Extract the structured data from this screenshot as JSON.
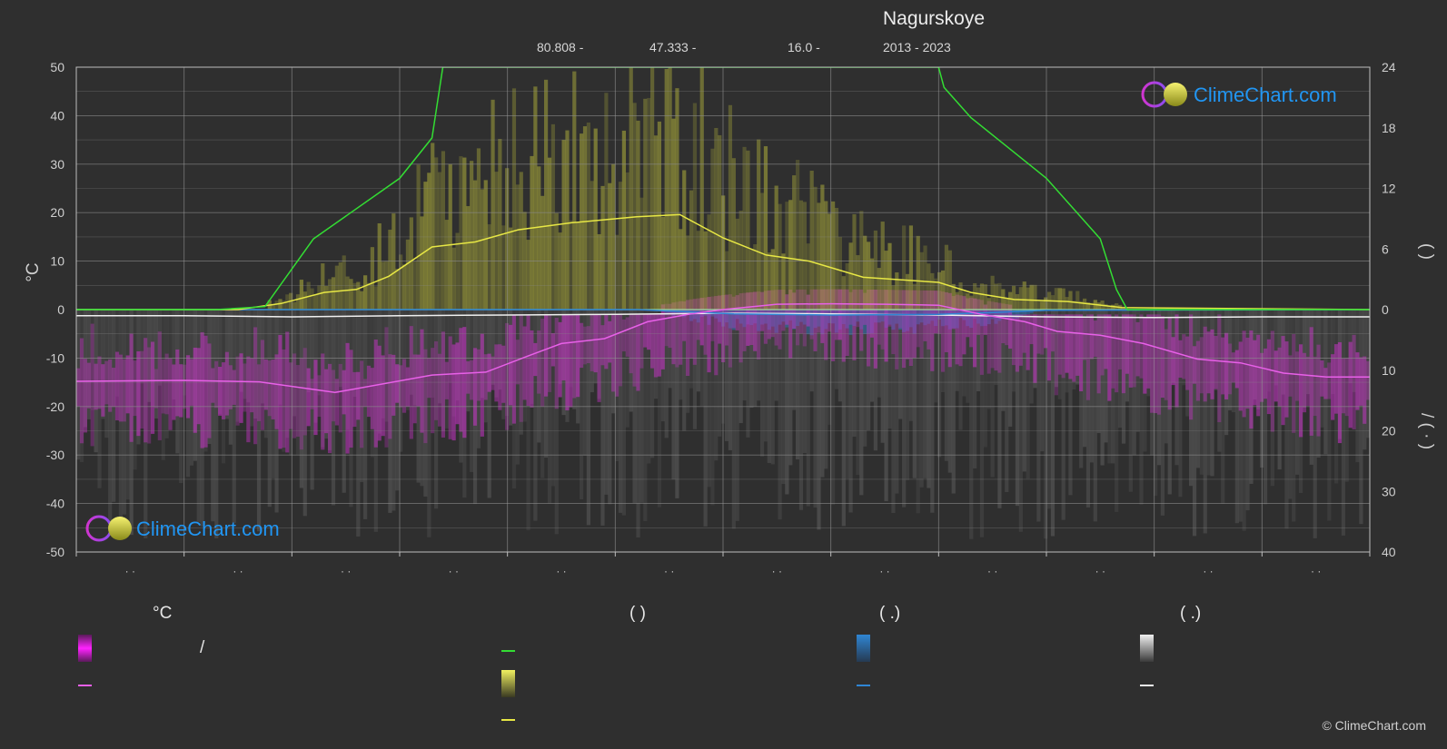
{
  "title": "Nagurskoye",
  "meta": {
    "latitude": "80.808 -",
    "longitude": "47.333 -",
    "elevation": "16.0 -",
    "years": "2013 - 2023"
  },
  "logo_text": "ClimeChart.com",
  "copyright": "© ClimeChart.com",
  "colors": {
    "background": "#2f2f2f",
    "daylight": "#33dd33",
    "sunshine": "#e7e745",
    "temperature": "#e860e8",
    "temperature_band": "#cc33cc",
    "rain": "#2f86d4",
    "snow": "#d8d8d8",
    "logo": "#2196f3"
  },
  "chart_data": {
    "type": "line",
    "x": [
      0,
      1,
      2,
      3,
      4,
      5,
      6,
      7,
      8,
      9,
      10,
      11,
      12
    ],
    "month_tick_labels": [
      "· ·",
      "· ·",
      "· ·",
      "· ·",
      "· ·",
      "· ·",
      "· ·",
      "· ·",
      "· ·",
      "· ·",
      "· ·",
      "· ·"
    ],
    "y_left": {
      "label": "°C",
      "range": [
        -50,
        50
      ],
      "ticks": [
        50,
        40,
        30,
        20,
        10,
        0,
        -10,
        -20,
        -30,
        -40,
        -50
      ]
    },
    "y_right_top": {
      "label": "(  )",
      "range": [
        0,
        24
      ],
      "ticks": [
        24,
        18,
        12,
        6,
        0
      ]
    },
    "y_right_bottom": {
      "label": "/  (  ·  )",
      "range": [
        0,
        40
      ],
      "ticks": [
        0,
        10,
        20,
        30,
        40
      ]
    },
    "grid": true,
    "series": [
      {
        "key": "daylight",
        "unit": "hours",
        "points": [
          [
            0,
            0
          ],
          [
            1.3,
            0
          ],
          [
            1.75,
            0.3
          ],
          [
            2.2,
            7
          ],
          [
            3.0,
            13
          ],
          [
            3.3,
            17
          ],
          [
            3.4,
            24
          ],
          [
            8.0,
            24
          ],
          [
            8.05,
            22
          ],
          [
            8.3,
            19
          ],
          [
            9.0,
            13
          ],
          [
            9.5,
            7
          ],
          [
            9.65,
            2
          ],
          [
            9.75,
            0
          ],
          [
            12,
            0
          ]
        ]
      },
      {
        "key": "sunshine",
        "unit": "hours",
        "points": [
          [
            0,
            0
          ],
          [
            1.5,
            0
          ],
          [
            1.9,
            0.6
          ],
          [
            2.3,
            1.7
          ],
          [
            2.6,
            2.0
          ],
          [
            2.9,
            3.3
          ],
          [
            3.3,
            6.2
          ],
          [
            3.7,
            6.7
          ],
          [
            4.1,
            7.9
          ],
          [
            4.6,
            8.6
          ],
          [
            5.2,
            9.2
          ],
          [
            5.6,
            9.4
          ],
          [
            6.0,
            7.1
          ],
          [
            6.4,
            5.4
          ],
          [
            6.8,
            4.8
          ],
          [
            7.3,
            3.2
          ],
          [
            8.0,
            2.7
          ],
          [
            8.3,
            1.7
          ],
          [
            8.7,
            1.0
          ],
          [
            9.2,
            0.8
          ],
          [
            9.7,
            0.2
          ],
          [
            12,
            0
          ]
        ]
      },
      {
        "key": "temperature_mean",
        "unit": "°C",
        "points": [
          [
            0,
            -14.8
          ],
          [
            1,
            -14.6
          ],
          [
            1.7,
            -14.9
          ],
          [
            2.4,
            -17.1
          ],
          [
            3.3,
            -13.5
          ],
          [
            3.8,
            -12.9
          ],
          [
            4.2,
            -9.5
          ],
          [
            4.5,
            -7.0
          ],
          [
            4.9,
            -6.0
          ],
          [
            5.3,
            -2.5
          ],
          [
            5.7,
            -0.9
          ],
          [
            6.0,
            0.0
          ],
          [
            6.5,
            1.1
          ],
          [
            7.0,
            1.2
          ],
          [
            7.5,
            1.1
          ],
          [
            8.0,
            0.9
          ],
          [
            8.4,
            -1.0
          ],
          [
            8.8,
            -2.5
          ],
          [
            9.1,
            -4.5
          ],
          [
            9.5,
            -5.3
          ],
          [
            9.9,
            -7.0
          ],
          [
            10.4,
            -10.2
          ],
          [
            10.8,
            -11.0
          ],
          [
            11.2,
            -13.1
          ],
          [
            11.6,
            -13.9
          ],
          [
            12,
            -13.9
          ]
        ]
      },
      {
        "key": "rain_mean",
        "unit": "mm",
        "points": [
          [
            0,
            0
          ],
          [
            5.2,
            0
          ],
          [
            5.6,
            0.3
          ],
          [
            6.1,
            0.7
          ],
          [
            7.0,
            0.9
          ],
          [
            8.0,
            0.8
          ],
          [
            8.5,
            0.5
          ],
          [
            9.0,
            0.1
          ],
          [
            12,
            0
          ]
        ]
      },
      {
        "key": "snow_mean",
        "unit": "mm",
        "points": [
          [
            0,
            1.0
          ],
          [
            1,
            1.0
          ],
          [
            2,
            1.2
          ],
          [
            3,
            1.0
          ],
          [
            4,
            0.9
          ],
          [
            5,
            0.8
          ],
          [
            6,
            0.6
          ],
          [
            7,
            0.7
          ],
          [
            8,
            0.9
          ],
          [
            9,
            1.2
          ],
          [
            10,
            1.3
          ],
          [
            11,
            1.2
          ],
          [
            12,
            1.2
          ]
        ]
      }
    ]
  },
  "legend": {
    "temperature": {
      "header": "°C",
      "range_separator": "/"
    },
    "sun": {
      "header": "(            )"
    },
    "rain": {
      "header": "(    .)"
    },
    "snow": {
      "header": "(    .)"
    }
  }
}
